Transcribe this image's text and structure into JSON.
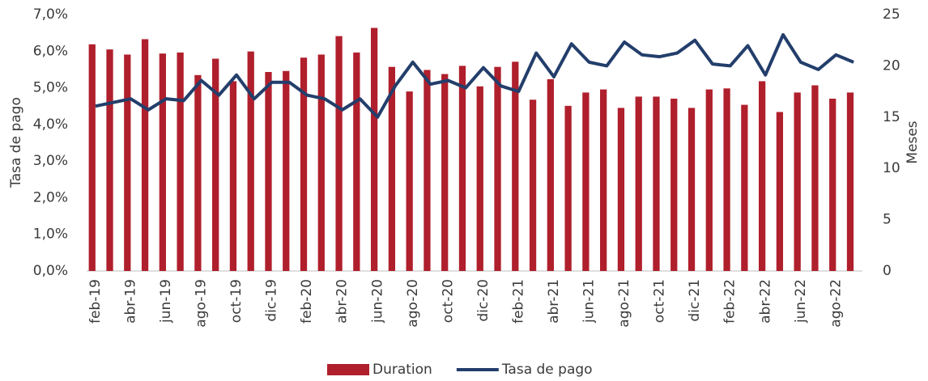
{
  "chart_data": {
    "type": "bar-line",
    "categories": [
      "feb-19",
      null,
      "abr-19",
      null,
      "jun-19",
      null,
      "ago-19",
      null,
      "oct-19",
      null,
      "dic-19",
      null,
      "feb-20",
      null,
      "abr-20",
      null,
      "jun-20",
      null,
      "ago-20",
      null,
      "oct-20",
      null,
      "dic-20",
      null,
      "feb-21",
      null,
      "abr-21",
      null,
      "jun-21",
      null,
      "ago-21",
      null,
      "oct-21",
      null,
      "dic-21",
      null,
      "feb-22",
      null,
      "abr-22",
      null,
      "jun-22",
      null,
      "ago-22",
      null
    ],
    "series": [
      {
        "name": "Duration",
        "type": "bar",
        "axis": "y2",
        "color": "#b01f2c",
        "values": [
          22.1,
          21.6,
          21.1,
          22.6,
          21.2,
          21.3,
          19.1,
          20.7,
          18.5,
          21.4,
          19.4,
          19.5,
          20.8,
          21.1,
          22.9,
          21.3,
          23.7,
          19.9,
          17.5,
          19.6,
          19.2,
          20.0,
          18.0,
          19.9,
          20.4,
          16.7,
          18.7,
          16.1,
          17.4,
          17.7,
          15.9,
          17.0,
          17.0,
          16.8,
          15.9,
          17.7,
          17.8,
          16.2,
          18.5,
          15.5,
          17.4,
          18.1,
          16.8,
          17.4
        ]
      },
      {
        "name": "Tasa de pago",
        "type": "line",
        "axis": "y",
        "color": "#233e6b",
        "values": [
          4.5,
          4.6,
          4.7,
          4.4,
          4.7,
          4.65,
          5.2,
          4.8,
          5.35,
          4.7,
          5.15,
          5.15,
          4.8,
          4.7,
          4.4,
          4.7,
          4.2,
          5.05,
          5.7,
          5.1,
          5.2,
          5.0,
          5.55,
          5.05,
          4.9,
          5.95,
          5.3,
          6.2,
          5.7,
          5.6,
          6.25,
          5.9,
          5.85,
          5.95,
          6.3,
          5.65,
          5.6,
          6.15,
          5.35,
          6.45,
          5.7,
          5.5,
          5.9,
          5.7
        ]
      }
    ],
    "ylabel": "Tasa de pago",
    "y2label": "Meses",
    "ylim": [
      0,
      7
    ],
    "yticks": [
      {
        "value": 0,
        "label": "0,0%"
      },
      {
        "value": 1,
        "label": "1,0%"
      },
      {
        "value": 2,
        "label": "2,0%"
      },
      {
        "value": 3,
        "label": "3,0%"
      },
      {
        "value": 4,
        "label": "4,0%"
      },
      {
        "value": 5,
        "label": "5,0%"
      },
      {
        "value": 6,
        "label": "6,0%"
      },
      {
        "value": 7,
        "label": "7,0%"
      }
    ],
    "y2lim": [
      0,
      25
    ],
    "y2ticks": [
      0,
      5,
      10,
      15,
      20,
      25
    ],
    "legend": "bottom"
  }
}
